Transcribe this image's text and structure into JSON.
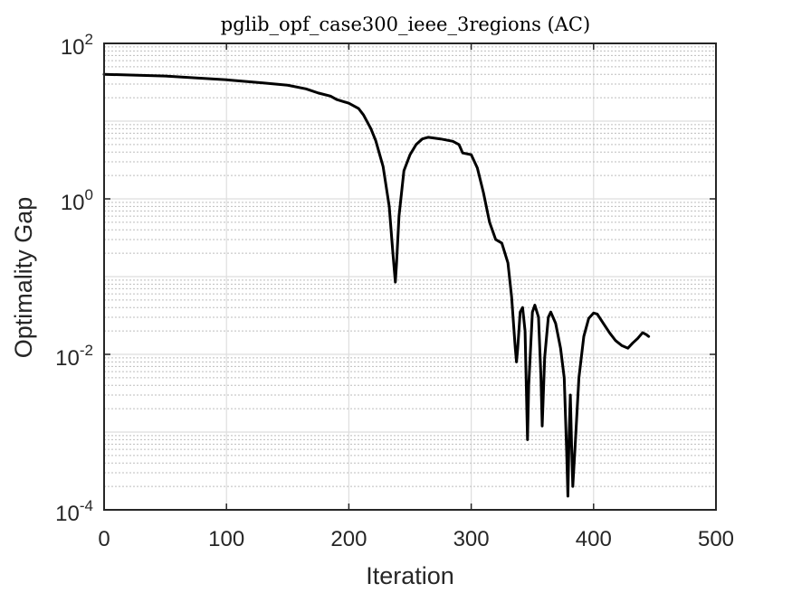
{
  "chart_data": {
    "type": "line",
    "title": "pglib_opf_case300_ieee_3regions (AC)",
    "xlabel": "Iteration",
    "ylabel": "Optimality Gap",
    "xlim": [
      0,
      500
    ],
    "ylim": [
      0.0001,
      100
    ],
    "yscale": "log",
    "grid": true,
    "minor_grid": true,
    "x_ticks": [
      0,
      100,
      200,
      300,
      400,
      500
    ],
    "x_tick_labels": [
      "0",
      "100",
      "200",
      "300",
      "400",
      "500"
    ],
    "y_ticks": [
      0.0001,
      0.01,
      1,
      100
    ],
    "y_tick_labels": [
      {
        "base": "10",
        "exp": "-4"
      },
      {
        "base": "10",
        "exp": "-2"
      },
      {
        "base": "10",
        "exp": "0"
      },
      {
        "base": "10",
        "exp": "2"
      }
    ],
    "series": [
      {
        "color": "#000000",
        "points": [
          [
            0,
            40
          ],
          [
            50,
            38
          ],
          [
            100,
            34
          ],
          [
            130,
            31
          ],
          [
            150,
            29
          ],
          [
            165,
            26
          ],
          [
            175,
            23
          ],
          [
            185,
            21
          ],
          [
            190,
            19
          ],
          [
            200,
            17
          ],
          [
            208,
            14.5
          ],
          [
            212,
            12
          ],
          [
            218,
            8
          ],
          [
            222,
            5.6
          ],
          [
            228,
            2.6
          ],
          [
            233,
            0.8
          ],
          [
            236,
            0.2
          ],
          [
            238,
            0.085
          ],
          [
            239,
            0.15
          ],
          [
            241,
            0.6
          ],
          [
            245,
            2.3
          ],
          [
            250,
            3.7
          ],
          [
            255,
            5.0
          ],
          [
            260,
            5.9
          ],
          [
            265,
            6.2
          ],
          [
            275,
            5.9
          ],
          [
            285,
            5.5
          ],
          [
            290,
            5.0
          ],
          [
            293,
            3.9
          ],
          [
            300,
            3.7
          ],
          [
            305,
            2.5
          ],
          [
            310,
            1.2
          ],
          [
            315,
            0.5
          ],
          [
            320,
            0.3
          ],
          [
            325,
            0.27
          ],
          [
            330,
            0.15
          ],
          [
            333,
            0.055
          ],
          [
            336,
            0.012
          ],
          [
            337,
            0.008
          ],
          [
            338,
            0.012
          ],
          [
            340,
            0.035
          ],
          [
            342,
            0.04
          ],
          [
            344,
            0.02
          ],
          [
            346,
            0.0008
          ],
          [
            347,
            0.004
          ],
          [
            350,
            0.035
          ],
          [
            352,
            0.043
          ],
          [
            355,
            0.03
          ],
          [
            357,
            0.005
          ],
          [
            358,
            0.0012
          ],
          [
            360,
            0.009
          ],
          [
            363,
            0.03
          ],
          [
            365,
            0.035
          ],
          [
            369,
            0.025
          ],
          [
            373,
            0.012
          ],
          [
            376,
            0.005
          ],
          [
            378,
            0.00055
          ],
          [
            379,
            0.00015
          ],
          [
            380,
            0.0009
          ],
          [
            381,
            0.003
          ],
          [
            382,
            0.0007
          ],
          [
            383,
            0.0002
          ],
          [
            385,
            0.0007
          ],
          [
            388,
            0.005
          ],
          [
            392,
            0.017
          ],
          [
            396,
            0.029
          ],
          [
            400,
            0.034
          ],
          [
            403,
            0.033
          ],
          [
            408,
            0.025
          ],
          [
            413,
            0.019
          ],
          [
            418,
            0.015
          ],
          [
            423,
            0.013
          ],
          [
            428,
            0.012
          ],
          [
            432,
            0.014
          ],
          [
            436,
            0.016
          ],
          [
            440,
            0.019
          ],
          [
            443,
            0.018
          ],
          [
            445,
            0.017
          ]
        ]
      }
    ]
  }
}
